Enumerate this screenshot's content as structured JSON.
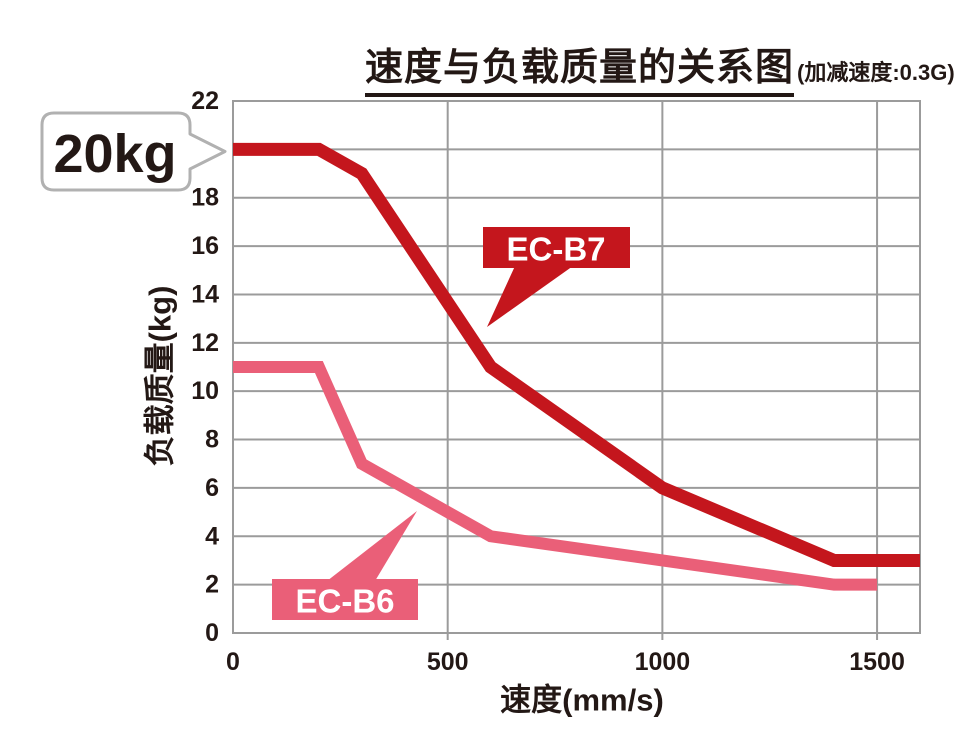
{
  "title": {
    "main": "速度与负载质量的关系图",
    "sub": "(加减速度:0.3G)"
  },
  "callout": {
    "label": "20kg"
  },
  "axes": {
    "x_label": "速度(mm/s)",
    "y_label": "负载质量(kg)",
    "x_ticks": [
      {
        "v": 0,
        "label": "0"
      },
      {
        "v": 500,
        "label": "500"
      },
      {
        "v": 1000,
        "label": "1000"
      },
      {
        "v": 1500,
        "label": "1500"
      }
    ],
    "y_ticks": [
      {
        "v": 22,
        "label": "22"
      },
      {
        "v": 18,
        "label": "18"
      },
      {
        "v": 16,
        "label": "16"
      },
      {
        "v": 14,
        "label": "14"
      },
      {
        "v": 12,
        "label": "12"
      },
      {
        "v": 10,
        "label": "10"
      },
      {
        "v": 8,
        "label": "8"
      },
      {
        "v": 6,
        "label": "6"
      },
      {
        "v": 4,
        "label": "4"
      },
      {
        "v": 2,
        "label": "2"
      },
      {
        "v": 0,
        "label": "0"
      }
    ]
  },
  "colors": {
    "ecb7_red": "#c4161d",
    "ecb6_pink": "#ea5f78",
    "grid_gray": "#9b9b9b",
    "text_dark": "#231815",
    "callout_border": "#b1b1b1",
    "background": "#ffffff"
  },
  "chart_data": {
    "type": "line",
    "title": "速度与负载质量的关系图(加减速度:0.3G)",
    "xlabel": "速度(mm/s)",
    "ylabel": "负载质量(kg)",
    "xlim": [
      0,
      1600
    ],
    "ylim": [
      0,
      22
    ],
    "x_gridlines": [
      500,
      1000,
      1500
    ],
    "y_gridlines": [
      2,
      4,
      6,
      8,
      10,
      12,
      14,
      16,
      18,
      20
    ],
    "grid": true,
    "legend_position": "inline-tags",
    "series": [
      {
        "name": "EC-B7",
        "color": "#c4161d",
        "stroke_width": 13,
        "points": [
          [
            0,
            20
          ],
          [
            200,
            20
          ],
          [
            300,
            19
          ],
          [
            600,
            11
          ],
          [
            1000,
            6
          ],
          [
            1400,
            3
          ],
          [
            1600,
            3
          ]
        ]
      },
      {
        "name": "EC-B6",
        "color": "#ea5f78",
        "stroke_width": 12,
        "points": [
          [
            0,
            11
          ],
          [
            200,
            11
          ],
          [
            300,
            7
          ],
          [
            600,
            4
          ],
          [
            1000,
            3
          ],
          [
            1400,
            2
          ],
          [
            1500,
            2
          ]
        ]
      }
    ],
    "annotations": [
      {
        "text": "20kg",
        "refers_to": "EC-B7 start value",
        "points_to_xy": [
          0,
          20
        ]
      }
    ]
  }
}
